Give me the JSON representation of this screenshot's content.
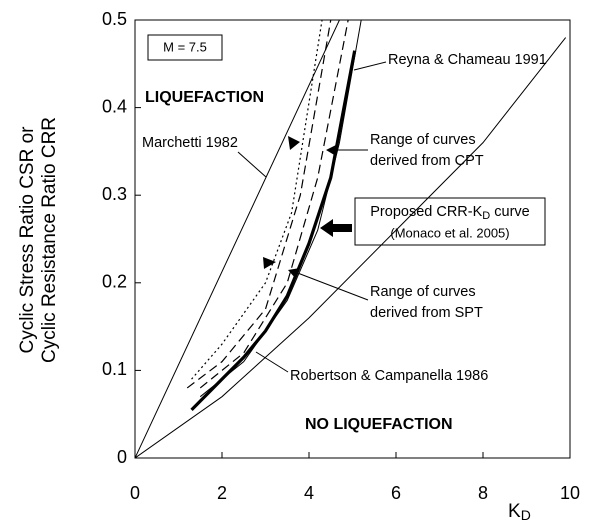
{
  "chart_data": {
    "type": "line",
    "xlabel": [
      "K",
      "D"
    ],
    "ylabel": [
      "Cyclic Stress Ratio CSR or",
      "Cyclic Resistance Ratio CRR"
    ],
    "xlim": [
      0,
      10
    ],
    "ylim": [
      0,
      0.5
    ],
    "xticks": [
      0,
      2,
      4,
      6,
      8,
      10
    ],
    "yticks": [
      0,
      0.1,
      0.2,
      0.3,
      0.4,
      0.5
    ],
    "annotations": {
      "magnitude": "M = 7.5",
      "liq": "LIQUEFACTION",
      "noliq": "NO LIQUEFACTION",
      "cpt": [
        "Range of curves",
        "derived from CPT"
      ],
      "spt": [
        "Range of curves",
        "derived from SPT"
      ],
      "proposed": [
        "Proposed CRR-K",
        "D",
        " curve"
      ],
      "proposed_ref": "(Monaco et al. 2005)"
    },
    "series": [
      {
        "name": "Marchetti 1982",
        "color": "#000000",
        "width": 1,
        "style": "solid",
        "x": [
          0,
          4.7
        ],
        "values": [
          0,
          0.5
        ]
      },
      {
        "name": "Robertson & Campanella 1986",
        "color": "#000000",
        "width": 1,
        "style": "solid",
        "x": [
          0,
          2,
          4,
          6,
          8,
          9.9
        ],
        "values": [
          0,
          0.07,
          0.16,
          0.26,
          0.36,
          0.48
        ]
      },
      {
        "name": "Reyna & Chameau 1991",
        "color": "#000000",
        "width": 1,
        "style": "solid",
        "x": [
          1.5,
          2.5,
          3.5,
          4.2,
          4.7,
          5.2
        ],
        "values": [
          0.07,
          0.11,
          0.18,
          0.26,
          0.36,
          0.5
        ]
      },
      {
        "color": "#000000",
        "width": 1.2,
        "style": "dashed",
        "x": [
          1.2,
          2,
          3,
          3.8,
          4.5
        ],
        "values": [
          0.08,
          0.11,
          0.17,
          0.3,
          0.5
        ]
      },
      {
        "color": "#000000",
        "width": 1.2,
        "style": "dashed",
        "x": [
          1.5,
          2.5,
          3.5,
          4.2,
          4.9
        ],
        "values": [
          0.08,
          0.12,
          0.2,
          0.32,
          0.5
        ]
      },
      {
        "color": "#000000",
        "width": 1.2,
        "style": "dotted",
        "x": [
          1.3,
          2,
          3,
          3.6,
          4.3
        ],
        "values": [
          0.09,
          0.13,
          0.2,
          0.28,
          0.5
        ]
      },
      {
        "name": "",
        "color": "#000000",
        "width": 3.2,
        "style": "solid",
        "x": [
          1.3,
          2,
          2.5,
          3,
          3.5,
          4,
          4.5,
          5.05
        ],
        "values": [
          0.055,
          0.09,
          0.115,
          0.145,
          0.185,
          0.245,
          0.32,
          0.465
        ]
      }
    ]
  }
}
